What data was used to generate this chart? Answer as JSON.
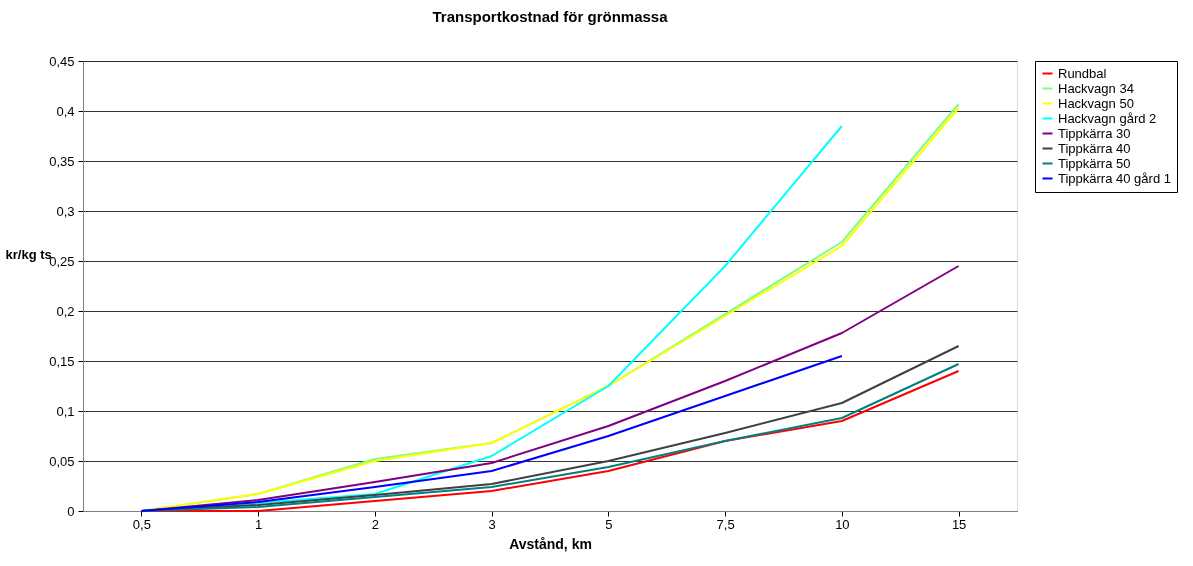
{
  "chart_data": {
    "type": "line",
    "title": "Transportkostnad för grönmassa",
    "xlabel": "Avstånd, km",
    "ylabel": "kr/kg ts",
    "categories": [
      "0,5",
      "1",
      "2",
      "3",
      "5",
      "7,5",
      "10",
      "15"
    ],
    "series": [
      {
        "name": "Rundbal",
        "color": "#ff0000",
        "values": [
          0,
          0,
          0.01,
          0.02,
          0.04,
          0.07,
          0.09,
          0.14
        ]
      },
      {
        "name": "Hackvagn 34",
        "color": "#80ff80",
        "values": [
          0,
          0.017,
          0.052,
          0.068,
          0.125,
          0.197,
          0.269,
          0.407
        ]
      },
      {
        "name": "Hackvagn 50",
        "color": "#ffff00",
        "values": [
          0,
          0.017,
          0.05,
          0.068,
          0.125,
          0.195,
          0.265,
          0.403
        ]
      },
      {
        "name": "Hackvagn gård 2",
        "color": "#00ffff",
        "values": [
          0,
          0.008,
          0.017,
          0.055,
          0.125,
          0.245,
          0.385,
          null
        ]
      },
      {
        "name": "Tippkärra 30",
        "color": "#800080",
        "values": [
          0,
          0.011,
          0.029,
          0.048,
          0.085,
          0.13,
          0.178,
          0.245
        ]
      },
      {
        "name": "Tippkärra 40",
        "color": "#404040",
        "values": [
          0,
          0.006,
          0.016,
          0.027,
          0.05,
          0.078,
          0.108,
          0.165
        ]
      },
      {
        "name": "Tippkärra 50",
        "color": "#008080",
        "values": [
          0,
          0.004,
          0.014,
          0.024,
          0.044,
          0.07,
          0.093,
          0.147
        ]
      },
      {
        "name": "Tippkärra 40 gård 1",
        "color": "#0000ff",
        "values": [
          0,
          0.009,
          0.024,
          0.04,
          0.075,
          0.115,
          0.155,
          null
        ]
      }
    ],
    "ylim": [
      0,
      0.45
    ],
    "yticks": [
      0,
      {
        "value": 0.05,
        "label": "0,05"
      },
      {
        "value": 0.1,
        "label": "0,1"
      },
      {
        "value": 0.15,
        "label": "0,15"
      },
      {
        "value": 0.2,
        "label": "0,2"
      },
      {
        "value": 0.25,
        "label": "0,25"
      },
      {
        "value": 0.3,
        "label": "0,3"
      },
      {
        "value": 0.35,
        "label": "0,35"
      },
      {
        "value": 0.4,
        "label": "0,4"
      },
      {
        "value": 0.45,
        "label": "0,45"
      }
    ],
    "grid": "y",
    "legend": "right",
    "marker": "none",
    "line_style": "solid"
  }
}
